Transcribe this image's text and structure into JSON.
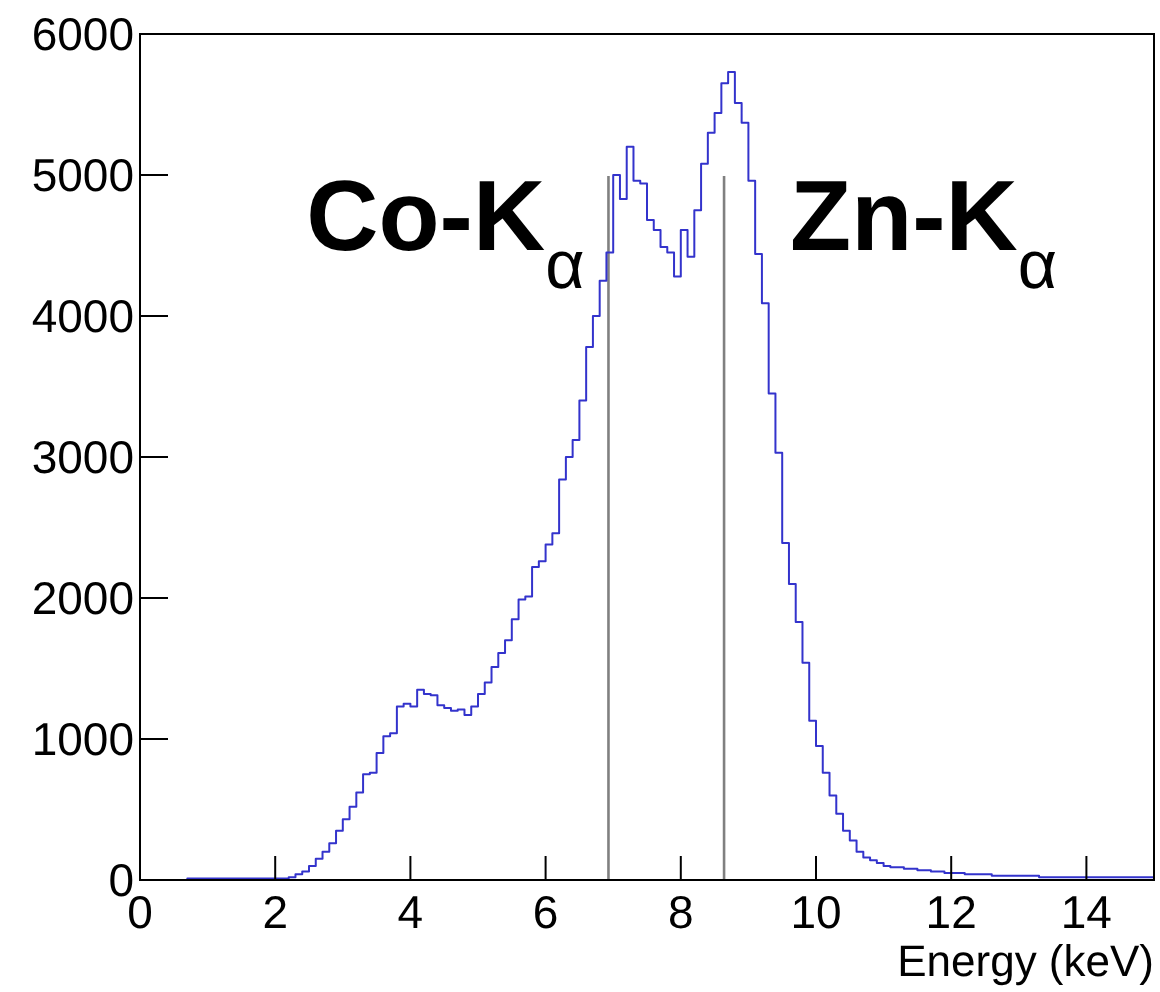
{
  "chart_data": {
    "type": "histogram",
    "xlabel": "Energy (keV)",
    "color": "#3333cc",
    "bins": [
      0,
      0.1,
      0.2,
      0.3,
      0.4,
      0.5,
      0.6,
      0.7,
      0.8,
      0.9,
      1,
      1.1,
      1.2,
      1.3,
      1.4,
      1.5,
      1.6,
      1.7,
      1.8,
      1.9,
      2,
      2.1,
      2.2,
      2.3,
      2.4,
      2.5,
      2.6,
      2.7,
      2.8,
      2.9,
      3,
      3.1,
      3.2,
      3.3,
      3.4,
      3.5,
      3.6,
      3.7,
      3.8,
      3.9,
      4,
      4.1,
      4.2,
      4.3,
      4.4,
      4.5,
      4.6,
      4.7,
      4.8,
      4.9,
      5,
      5.1,
      5.2,
      5.3,
      5.4,
      5.5,
      5.6,
      5.7,
      5.8,
      5.9,
      6,
      6.1,
      6.2,
      6.3,
      6.4,
      6.5,
      6.6,
      6.7,
      6.8,
      6.9,
      7,
      7.1,
      7.2,
      7.3,
      7.4,
      7.5,
      7.6,
      7.7,
      7.8,
      7.9,
      8,
      8.1,
      8.2,
      8.3,
      8.4,
      8.5,
      8.6,
      8.7,
      8.8,
      8.9,
      9,
      9.1,
      9.2,
      9.3,
      9.4,
      9.5,
      9.6,
      9.7,
      9.8,
      9.9,
      10,
      10.1,
      10.2,
      10.3,
      10.4,
      10.5,
      10.6,
      10.7,
      10.8,
      10.9,
      11,
      11.1,
      11.2,
      11.3,
      11.4,
      11.5,
      11.6,
      11.7,
      11.8,
      11.9,
      12,
      12.1,
      12.2,
      12.3,
      12.4,
      12.5,
      12.6,
      12.7,
      12.8,
      12.9,
      13,
      13.1,
      13.2,
      13.3,
      13.4,
      13.5,
      13.6,
      13.7,
      13.8,
      13.9,
      14,
      14.1,
      14.2,
      14.3,
      14.4,
      14.5,
      14.6,
      14.7,
      14.8,
      14.9,
      15
    ],
    "values": [
      0,
      0,
      0,
      0,
      0,
      0,
      0,
      10,
      10,
      10,
      10,
      10,
      10,
      10,
      10,
      10,
      10,
      10,
      10,
      10,
      10,
      10,
      20,
      40,
      60,
      100,
      150,
      200,
      260,
      350,
      430,
      520,
      620,
      750,
      760,
      900,
      1020,
      1040,
      1230,
      1250,
      1230,
      1350,
      1320,
      1310,
      1240,
      1220,
      1200,
      1210,
      1170,
      1230,
      1320,
      1400,
      1510,
      1610,
      1700,
      1850,
      1990,
      2010,
      2220,
      2260,
      2380,
      2460,
      2840,
      3000,
      3120,
      3400,
      3780,
      4000,
      4250,
      4450,
      5000,
      4830,
      5200,
      4960,
      4940,
      4680,
      4610,
      4490,
      4450,
      4280,
      4610,
      4420,
      4750,
      5080,
      5300,
      5440,
      5650,
      5730,
      5510,
      5370,
      4960,
      4440,
      4090,
      3450,
      3030,
      2390,
      2100,
      1830,
      1540,
      1130,
      950,
      760,
      600,
      470,
      350,
      280,
      200,
      160,
      140,
      120,
      100,
      90,
      90,
      80,
      80,
      70,
      70,
      60,
      60,
      50,
      50,
      50,
      40,
      40,
      40,
      40,
      30,
      30,
      30,
      30,
      30,
      30,
      30,
      20,
      20,
      20,
      20,
      20,
      20,
      20,
      20,
      20,
      20,
      20,
      20,
      20,
      20,
      20,
      20,
      20
    ],
    "xlim": [
      0,
      15
    ],
    "xticks": [
      0,
      2,
      4,
      6,
      8,
      10,
      12,
      14
    ],
    "ylim": [
      0,
      6000
    ],
    "yticks": [
      0,
      1000,
      2000,
      3000,
      4000,
      5000,
      6000
    ],
    "ref_lines": [
      {
        "axis": "x",
        "value": 6.93,
        "label": "Co-K$_{α}$",
        "color": "#808080"
      },
      {
        "axis": "x",
        "value": 8.64,
        "label": "Zn-K$_{α}$",
        "color": "#808080"
      }
    ]
  }
}
